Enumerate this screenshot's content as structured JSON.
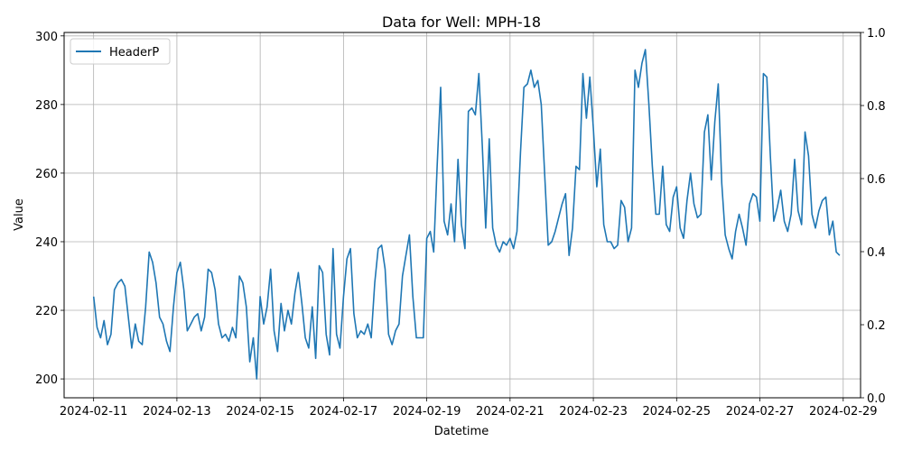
{
  "chart_data": {
    "type": "line",
    "title": "Data for Well: MPH-18",
    "xlabel": "Datetime",
    "ylabel": "Value",
    "xlim": [
      "2024-02-10T07:00",
      "2024-02-29T10:00"
    ],
    "ylim": [
      194.5,
      301
    ],
    "y2lim": [
      0,
      1
    ],
    "grid": true,
    "legend_position": "top-left",
    "series_color": "#1f77b4",
    "x_ticks": [
      "2024-02-11",
      "2024-02-13",
      "2024-02-15",
      "2024-02-17",
      "2024-02-19",
      "2024-02-21",
      "2024-02-23",
      "2024-02-25",
      "2024-02-27",
      "2024-02-29"
    ],
    "y_ticks": [
      200,
      220,
      240,
      260,
      280,
      300
    ],
    "y2_ticks": [
      "0.0",
      "0.2",
      "0.4",
      "0.6",
      "0.8",
      "1.0"
    ],
    "series": [
      {
        "name": "HeaderP",
        "points": [
          [
            "2024-02-11T00:00",
            224
          ],
          [
            "2024-02-11T02:00",
            215
          ],
          [
            "2024-02-11T04:00",
            212
          ],
          [
            "2024-02-11T06:00",
            217
          ],
          [
            "2024-02-11T08:00",
            210
          ],
          [
            "2024-02-11T10:00",
            213
          ],
          [
            "2024-02-11T12:00",
            226
          ],
          [
            "2024-02-11T14:00",
            228
          ],
          [
            "2024-02-11T16:00",
            229
          ],
          [
            "2024-02-11T18:00",
            227
          ],
          [
            "2024-02-11T20:00",
            218
          ],
          [
            "2024-02-11T22:00",
            209
          ],
          [
            "2024-02-12T00:00",
            216
          ],
          [
            "2024-02-12T02:00",
            211
          ],
          [
            "2024-02-12T04:00",
            210
          ],
          [
            "2024-02-12T06:00",
            221
          ],
          [
            "2024-02-12T08:00",
            237
          ],
          [
            "2024-02-12T10:00",
            234
          ],
          [
            "2024-02-12T12:00",
            228
          ],
          [
            "2024-02-12T14:00",
            218
          ],
          [
            "2024-02-12T16:00",
            216
          ],
          [
            "2024-02-12T18:00",
            211
          ],
          [
            "2024-02-12T20:00",
            208
          ],
          [
            "2024-02-12T22:00",
            221
          ],
          [
            "2024-02-13T00:00",
            231
          ],
          [
            "2024-02-13T02:00",
            234
          ],
          [
            "2024-02-13T04:00",
            226
          ],
          [
            "2024-02-13T06:00",
            214
          ],
          [
            "2024-02-13T08:00",
            216
          ],
          [
            "2024-02-13T10:00",
            218
          ],
          [
            "2024-02-13T12:00",
            219
          ],
          [
            "2024-02-13T14:00",
            214
          ],
          [
            "2024-02-13T16:00",
            218
          ],
          [
            "2024-02-13T18:00",
            232
          ],
          [
            "2024-02-13T20:00",
            231
          ],
          [
            "2024-02-13T22:00",
            226
          ],
          [
            "2024-02-14T00:00",
            216
          ],
          [
            "2024-02-14T02:00",
            212
          ],
          [
            "2024-02-14T04:00",
            213
          ],
          [
            "2024-02-14T06:00",
            211
          ],
          [
            "2024-02-14T08:00",
            215
          ],
          [
            "2024-02-14T10:00",
            212
          ],
          [
            "2024-02-14T12:00",
            230
          ],
          [
            "2024-02-14T14:00",
            228
          ],
          [
            "2024-02-14T16:00",
            221
          ],
          [
            "2024-02-14T18:00",
            205
          ],
          [
            "2024-02-14T20:00",
            212
          ],
          [
            "2024-02-14T22:00",
            200
          ],
          [
            "2024-02-15T00:00",
            224
          ],
          [
            "2024-02-15T02:00",
            216
          ],
          [
            "2024-02-15T04:00",
            221
          ],
          [
            "2024-02-15T06:00",
            232
          ],
          [
            "2024-02-15T08:00",
            214
          ],
          [
            "2024-02-15T10:00",
            208
          ],
          [
            "2024-02-15T12:00",
            222
          ],
          [
            "2024-02-15T14:00",
            214
          ],
          [
            "2024-02-15T16:00",
            220
          ],
          [
            "2024-02-15T18:00",
            216
          ],
          [
            "2024-02-15T20:00",
            225
          ],
          [
            "2024-02-15T22:00",
            231
          ],
          [
            "2024-02-16T00:00",
            222
          ],
          [
            "2024-02-16T02:00",
            212
          ],
          [
            "2024-02-16T04:00",
            209
          ],
          [
            "2024-02-16T06:00",
            221
          ],
          [
            "2024-02-16T08:00",
            206
          ],
          [
            "2024-02-16T10:00",
            233
          ],
          [
            "2024-02-16T12:00",
            231
          ],
          [
            "2024-02-16T14:00",
            213
          ],
          [
            "2024-02-16T16:00",
            207
          ],
          [
            "2024-02-16T18:00",
            238
          ],
          [
            "2024-02-16T20:00",
            213
          ],
          [
            "2024-02-16T22:00",
            209
          ],
          [
            "2024-02-17T00:00",
            224
          ],
          [
            "2024-02-17T02:00",
            235
          ],
          [
            "2024-02-17T04:00",
            238
          ],
          [
            "2024-02-17T06:00",
            219
          ],
          [
            "2024-02-17T08:00",
            212
          ],
          [
            "2024-02-17T10:00",
            214
          ],
          [
            "2024-02-17T12:00",
            213
          ],
          [
            "2024-02-17T14:00",
            216
          ],
          [
            "2024-02-17T16:00",
            212
          ],
          [
            "2024-02-17T18:00",
            228
          ],
          [
            "2024-02-17T20:00",
            238
          ],
          [
            "2024-02-17T22:00",
            239
          ],
          [
            "2024-02-18T00:00",
            232
          ],
          [
            "2024-02-18T02:00",
            213
          ],
          [
            "2024-02-18T04:00",
            210
          ],
          [
            "2024-02-18T06:00",
            214
          ],
          [
            "2024-02-18T08:00",
            216
          ],
          [
            "2024-02-18T10:00",
            230
          ],
          [
            "2024-02-18T12:00",
            236
          ],
          [
            "2024-02-18T14:00",
            242
          ],
          [
            "2024-02-18T16:00",
            224
          ],
          [
            "2024-02-18T18:00",
            212
          ],
          [
            "2024-02-18T20:00",
            212
          ],
          [
            "2024-02-18T22:00",
            212
          ],
          [
            "2024-02-19T00:00",
            241
          ],
          [
            "2024-02-19T02:00",
            243
          ],
          [
            "2024-02-19T04:00",
            237
          ],
          [
            "2024-02-19T06:00",
            262
          ],
          [
            "2024-02-19T08:00",
            285
          ],
          [
            "2024-02-19T10:00",
            246
          ],
          [
            "2024-02-19T12:00",
            242
          ],
          [
            "2024-02-19T14:00",
            251
          ],
          [
            "2024-02-19T16:00",
            240
          ],
          [
            "2024-02-19T18:00",
            264
          ],
          [
            "2024-02-19T20:00",
            245
          ],
          [
            "2024-02-19T22:00",
            238
          ],
          [
            "2024-02-20T00:00",
            278
          ],
          [
            "2024-02-20T02:00",
            279
          ],
          [
            "2024-02-20T04:00",
            277
          ],
          [
            "2024-02-20T06:00",
            289
          ],
          [
            "2024-02-20T08:00",
            268
          ],
          [
            "2024-02-20T10:00",
            244
          ],
          [
            "2024-02-20T12:00",
            270
          ],
          [
            "2024-02-20T14:00",
            244
          ],
          [
            "2024-02-20T16:00",
            239
          ],
          [
            "2024-02-20T18:00",
            237
          ],
          [
            "2024-02-20T20:00",
            240
          ],
          [
            "2024-02-20T22:00",
            239
          ],
          [
            "2024-02-21T00:00",
            241
          ],
          [
            "2024-02-21T02:00",
            238
          ],
          [
            "2024-02-21T04:00",
            243
          ],
          [
            "2024-02-21T06:00",
            266
          ],
          [
            "2024-02-21T08:00",
            285
          ],
          [
            "2024-02-21T10:00",
            286
          ],
          [
            "2024-02-21T12:00",
            290
          ],
          [
            "2024-02-21T14:00",
            285
          ],
          [
            "2024-02-21T16:00",
            287
          ],
          [
            "2024-02-21T18:00",
            280
          ],
          [
            "2024-02-21T20:00",
            259
          ],
          [
            "2024-02-21T22:00",
            239
          ],
          [
            "2024-02-22T00:00",
            240
          ],
          [
            "2024-02-22T02:00",
            243
          ],
          [
            "2024-02-22T04:00",
            247
          ],
          [
            "2024-02-22T06:00",
            251
          ],
          [
            "2024-02-22T08:00",
            254
          ],
          [
            "2024-02-22T10:00",
            236
          ],
          [
            "2024-02-22T12:00",
            244
          ],
          [
            "2024-02-22T14:00",
            262
          ],
          [
            "2024-02-22T16:00",
            261
          ],
          [
            "2024-02-22T18:00",
            289
          ],
          [
            "2024-02-22T20:00",
            276
          ],
          [
            "2024-02-22T22:00",
            288
          ],
          [
            "2024-02-23T00:00",
            273
          ],
          [
            "2024-02-23T02:00",
            256
          ],
          [
            "2024-02-23T04:00",
            267
          ],
          [
            "2024-02-23T06:00",
            245
          ],
          [
            "2024-02-23T08:00",
            240
          ],
          [
            "2024-02-23T10:00",
            240
          ],
          [
            "2024-02-23T12:00",
            238
          ],
          [
            "2024-02-23T14:00",
            239
          ],
          [
            "2024-02-23T16:00",
            252
          ],
          [
            "2024-02-23T18:00",
            250
          ],
          [
            "2024-02-23T20:00",
            240
          ],
          [
            "2024-02-23T22:00",
            244
          ],
          [
            "2024-02-24T00:00",
            290
          ],
          [
            "2024-02-24T02:00",
            285
          ],
          [
            "2024-02-24T04:00",
            292
          ],
          [
            "2024-02-24T06:00",
            296
          ],
          [
            "2024-02-24T08:00",
            280
          ],
          [
            "2024-02-24T10:00",
            262
          ],
          [
            "2024-02-24T12:00",
            248
          ],
          [
            "2024-02-24T14:00",
            248
          ],
          [
            "2024-02-24T16:00",
            262
          ],
          [
            "2024-02-24T18:00",
            245
          ],
          [
            "2024-02-24T20:00",
            243
          ],
          [
            "2024-02-24T22:00",
            253
          ],
          [
            "2024-02-25T00:00",
            256
          ],
          [
            "2024-02-25T02:00",
            244
          ],
          [
            "2024-02-25T04:00",
            241
          ],
          [
            "2024-02-25T06:00",
            252
          ],
          [
            "2024-02-25T08:00",
            260
          ],
          [
            "2024-02-25T10:00",
            251
          ],
          [
            "2024-02-25T12:00",
            247
          ],
          [
            "2024-02-25T14:00",
            248
          ],
          [
            "2024-02-25T16:00",
            272
          ],
          [
            "2024-02-25T18:00",
            277
          ],
          [
            "2024-02-25T20:00",
            258
          ],
          [
            "2024-02-25T22:00",
            275
          ],
          [
            "2024-02-26T00:00",
            286
          ],
          [
            "2024-02-26T02:00",
            257
          ],
          [
            "2024-02-26T04:00",
            242
          ],
          [
            "2024-02-26T06:00",
            238
          ],
          [
            "2024-02-26T08:00",
            235
          ],
          [
            "2024-02-26T10:00",
            243
          ],
          [
            "2024-02-26T12:00",
            248
          ],
          [
            "2024-02-26T14:00",
            244
          ],
          [
            "2024-02-26T16:00",
            239
          ],
          [
            "2024-02-26T18:00",
            251
          ],
          [
            "2024-02-26T20:00",
            254
          ],
          [
            "2024-02-26T22:00",
            253
          ],
          [
            "2024-02-27T00:00",
            246
          ],
          [
            "2024-02-27T02:00",
            289
          ],
          [
            "2024-02-27T04:00",
            288
          ],
          [
            "2024-02-27T06:00",
            265
          ],
          [
            "2024-02-27T08:00",
            246
          ],
          [
            "2024-02-27T10:00",
            250
          ],
          [
            "2024-02-27T12:00",
            255
          ],
          [
            "2024-02-27T14:00",
            246
          ],
          [
            "2024-02-27T16:00",
            243
          ],
          [
            "2024-02-27T18:00",
            248
          ],
          [
            "2024-02-27T20:00",
            264
          ],
          [
            "2024-02-27T22:00",
            249
          ],
          [
            "2024-02-28T00:00",
            245
          ],
          [
            "2024-02-28T02:00",
            272
          ],
          [
            "2024-02-28T04:00",
            265
          ],
          [
            "2024-02-28T06:00",
            248
          ],
          [
            "2024-02-28T08:00",
            244
          ],
          [
            "2024-02-28T10:00",
            249
          ],
          [
            "2024-02-28T12:00",
            252
          ],
          [
            "2024-02-28T14:00",
            253
          ],
          [
            "2024-02-28T16:00",
            242
          ],
          [
            "2024-02-28T18:00",
            246
          ],
          [
            "2024-02-28T20:00",
            237
          ],
          [
            "2024-02-28T22:00",
            236
          ]
        ]
      }
    ]
  }
}
